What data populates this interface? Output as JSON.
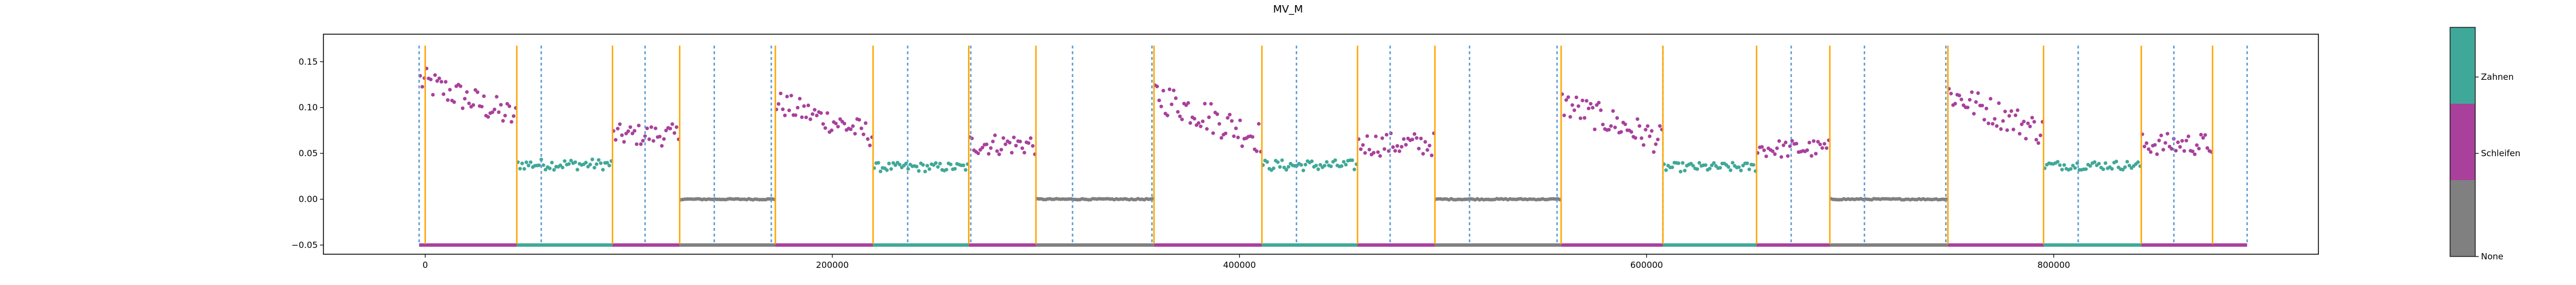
{
  "chart_data": {
    "type": "scatter",
    "title": "MV_M",
    "xlabel": "",
    "ylabel": "",
    "xlim": [
      -50000,
      930000
    ],
    "ylim": [
      -0.06,
      0.18
    ],
    "xticks": [
      0,
      200000,
      400000,
      600000,
      800000
    ],
    "xtick_labels": [
      "0",
      "200000",
      "400000",
      "600000",
      "800000"
    ],
    "yticks": [
      -0.05,
      0.0,
      0.05,
      0.1,
      0.15
    ],
    "ytick_labels": [
      "−0.05",
      "0.00",
      "0.05",
      "0.10",
      "0.15"
    ],
    "grid": false,
    "colors": {
      "none": "#808080",
      "schleifen": "#a8409c",
      "zahnen": "#40a898",
      "boundary_solid": "#ffa500",
      "boundary_dashed": "#5b9bd5"
    },
    "class_bar_y": -0.05,
    "segments": [
      {
        "start": -3000,
        "end": 45000,
        "class": "Schleifen",
        "center": 0.1,
        "amp": 0.035,
        "n": 46
      },
      {
        "start": 45000,
        "end": 92000,
        "class": "Zahnen",
        "center": 0.038,
        "amp": 0.006,
        "n": 45
      },
      {
        "start": 92000,
        "end": 125000,
        "class": "Schleifen",
        "center": 0.07,
        "amp": 0.012,
        "n": 32
      },
      {
        "start": 125000,
        "end": 172000,
        "class": "None",
        "center": 0.0,
        "amp": 0.0006,
        "n": 45
      },
      {
        "start": 172000,
        "end": 220000,
        "class": "Schleifen",
        "center": 0.08,
        "amp": 0.03,
        "n": 46
      },
      {
        "start": 220000,
        "end": 267000,
        "class": "Zahnen",
        "center": 0.035,
        "amp": 0.005,
        "n": 45
      },
      {
        "start": 267000,
        "end": 300000,
        "class": "Schleifen",
        "center": 0.06,
        "amp": 0.012,
        "n": 32
      },
      {
        "start": 300000,
        "end": 358000,
        "class": "None",
        "center": 0.0,
        "amp": 0.0006,
        "n": 55
      },
      {
        "start": 358000,
        "end": 411000,
        "class": "Schleifen",
        "center": 0.08,
        "amp": 0.04,
        "n": 52
      },
      {
        "start": 411000,
        "end": 458000,
        "class": "Zahnen",
        "center": 0.037,
        "amp": 0.006,
        "n": 45
      },
      {
        "start": 458000,
        "end": 496000,
        "class": "Schleifen",
        "center": 0.06,
        "amp": 0.013,
        "n": 36
      },
      {
        "start": 496000,
        "end": 558000,
        "class": "None",
        "center": 0.0,
        "amp": 0.0006,
        "n": 58
      },
      {
        "start": 558000,
        "end": 608000,
        "class": "Schleifen",
        "center": 0.075,
        "amp": 0.035,
        "n": 50
      },
      {
        "start": 608000,
        "end": 654000,
        "class": "Zahnen",
        "center": 0.035,
        "amp": 0.005,
        "n": 45
      },
      {
        "start": 654000,
        "end": 690000,
        "class": "Schleifen",
        "center": 0.055,
        "amp": 0.01,
        "n": 34
      },
      {
        "start": 690000,
        "end": 748000,
        "class": "None",
        "center": 0.0,
        "amp": 0.0006,
        "n": 55
      },
      {
        "start": 748000,
        "end": 795000,
        "class": "Schleifen",
        "center": 0.085,
        "amp": 0.035,
        "n": 46
      },
      {
        "start": 795000,
        "end": 843000,
        "class": "Zahnen",
        "center": 0.037,
        "amp": 0.005,
        "n": 45
      },
      {
        "start": 843000,
        "end": 878000,
        "class": "Schleifen",
        "center": 0.06,
        "amp": 0.012,
        "n": 34
      },
      {
        "start": 878000,
        "end": 895000,
        "class": "Schleifen",
        "center": 0.06,
        "amp": 0.006,
        "n": 0
      }
    ],
    "boundaries_solid": [
      0,
      45000,
      92000,
      125000,
      172000,
      220000,
      267000,
      300000,
      358000,
      411000,
      458000,
      496000,
      558000,
      608000,
      654000,
      690000,
      748000,
      795000,
      843000,
      878000
    ],
    "boundaries_dashed": [
      -3000,
      57000,
      108000,
      142000,
      170000,
      237000,
      268000,
      318000,
      357000,
      428000,
      474000,
      513000,
      556000,
      608000,
      671000,
      707000,
      747000,
      812000,
      859000,
      895000
    ],
    "colorbar": {
      "labels": [
        "None",
        "Schleifen",
        "Zahnen"
      ],
      "colors": [
        "#808080",
        "#a8409c",
        "#40a898"
      ]
    }
  }
}
